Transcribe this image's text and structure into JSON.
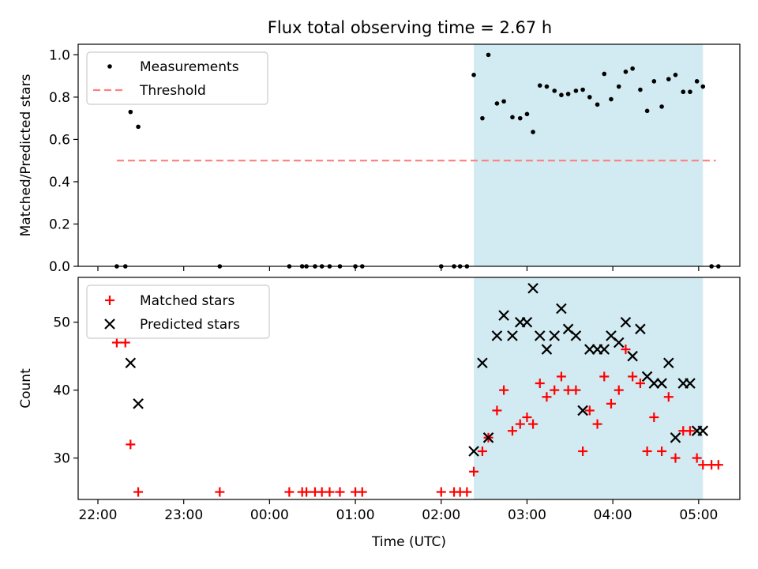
{
  "title": "Flux total observing time = 2.67 h",
  "colors": {
    "band": "#add8e6",
    "measure": "#000000",
    "threshold": "#ff7f7f",
    "matched": "#ff0000",
    "predicted": "#000000"
  },
  "chart_data": [
    {
      "type": "scatter",
      "ylabel": "Matched/Predicted stars",
      "xlim": [
        -0.23,
        7.48
      ],
      "ylim": [
        0,
        1.05
      ],
      "y_ticks": [
        0.0,
        0.2,
        0.4,
        0.6,
        0.8,
        1.0
      ],
      "y_tick_labels": [
        "0.0",
        "0.2",
        "0.4",
        "0.6",
        "0.8",
        "1.0"
      ],
      "band": [
        4.38,
        7.05
      ],
      "legend": {
        "position": "upper-left",
        "entries": [
          {
            "label": "Measurements",
            "kind": "dot"
          },
          {
            "label": "Threshold",
            "kind": "dashed"
          }
        ]
      },
      "threshold": {
        "value": 0.5,
        "x": [
          0.22,
          7.2
        ]
      },
      "series": [
        {
          "name": "Measurements",
          "x": [
            0.22,
            0.32,
            0.38,
            0.47,
            1.42,
            2.23,
            2.38,
            2.43,
            2.53,
            2.61,
            2.7,
            2.82,
            3.0,
            3.08,
            4.0,
            4.15,
            4.22,
            4.3,
            4.38,
            4.48,
            4.55,
            4.65,
            4.73,
            4.83,
            4.92,
            5.0,
            5.07,
            5.15,
            5.23,
            5.32,
            5.4,
            5.48,
            5.57,
            5.65,
            5.73,
            5.82,
            5.9,
            5.98,
            6.07,
            6.15,
            6.23,
            6.32,
            6.4,
            6.48,
            6.57,
            6.65,
            6.73,
            6.82,
            6.9,
            6.98,
            7.05,
            7.15,
            7.23
          ],
          "y": [
            0.0,
            0.0,
            0.73,
            0.66,
            0.0,
            0.0,
            0.0,
            0.0,
            0.0,
            0.0,
            0.0,
            0.0,
            0.0,
            0.0,
            0.0,
            0.0,
            0.0,
            0.0,
            0.905,
            0.7,
            1.0,
            0.77,
            0.78,
            0.705,
            0.7,
            0.72,
            0.635,
            0.855,
            0.85,
            0.83,
            0.81,
            0.815,
            0.83,
            0.835,
            0.8,
            0.765,
            0.91,
            0.79,
            0.85,
            0.92,
            0.935,
            0.835,
            0.735,
            0.875,
            0.755,
            0.885,
            0.905,
            0.825,
            0.825,
            0.875,
            0.85,
            0.0,
            0.0
          ]
        }
      ]
    },
    {
      "type": "scatter",
      "xlabel": "Time (UTC)",
      "ylabel": "Count",
      "xlim": [
        -0.23,
        7.48
      ],
      "ylim": [
        23.9,
        56.6
      ],
      "y_ticks": [
        30,
        40,
        50
      ],
      "y_tick_labels": [
        "30",
        "40",
        "50"
      ],
      "x_ticks": [
        0,
        1,
        2,
        3,
        4,
        5,
        6,
        7
      ],
      "x_tick_labels": [
        "22:00",
        "23:00",
        "00:00",
        "01:00",
        "02:00",
        "03:00",
        "04:00",
        "05:00"
      ],
      "band": [
        4.38,
        7.05
      ],
      "legend": {
        "position": "upper-left",
        "entries": [
          {
            "label": "Matched stars",
            "kind": "plus"
          },
          {
            "label": "Predicted stars",
            "kind": "x"
          }
        ]
      },
      "series": [
        {
          "name": "Matched stars",
          "x": [
            0.22,
            0.32,
            0.38,
            0.47,
            1.42,
            2.23,
            2.38,
            2.43,
            2.53,
            2.61,
            2.7,
            2.82,
            3.0,
            3.08,
            4.0,
            4.15,
            4.22,
            4.3,
            4.38,
            4.48,
            4.55,
            4.65,
            4.73,
            4.83,
            4.92,
            5.0,
            5.07,
            5.15,
            5.23,
            5.32,
            5.4,
            5.48,
            5.57,
            5.65,
            5.73,
            5.82,
            5.9,
            5.98,
            6.07,
            6.15,
            6.23,
            6.32,
            6.4,
            6.48,
            6.57,
            6.65,
            6.73,
            6.82,
            6.9,
            6.98,
            7.05,
            7.15,
            7.23
          ],
          "y": [
            47,
            47,
            32,
            25,
            25,
            25,
            25,
            25,
            25,
            25,
            25,
            25,
            25,
            25,
            25,
            25,
            25,
            25,
            28,
            31,
            33,
            37,
            40,
            34,
            35,
            36,
            35,
            41,
            39,
            40,
            42,
            40,
            40,
            31,
            37,
            35,
            42,
            38,
            40,
            46,
            42,
            41,
            31,
            36,
            31,
            39,
            30,
            34,
            34,
            30,
            29,
            29,
            29
          ]
        },
        {
          "name": "Predicted stars",
          "x": [
            0.38,
            0.47,
            4.38,
            4.48,
            4.55,
            4.65,
            4.73,
            4.83,
            4.92,
            5.0,
            5.07,
            5.15,
            5.23,
            5.32,
            5.4,
            5.48,
            5.57,
            5.65,
            5.73,
            5.82,
            5.9,
            5.98,
            6.07,
            6.15,
            6.23,
            6.32,
            6.4,
            6.48,
            6.57,
            6.65,
            6.73,
            6.82,
            6.9,
            6.98,
            7.05
          ],
          "y": [
            44,
            38,
            31,
            44,
            33,
            48,
            51,
            48,
            50,
            50,
            55,
            48,
            46,
            48,
            52,
            49,
            48,
            37,
            46,
            46,
            46,
            48,
            47,
            50,
            45,
            49,
            42,
            41,
            41,
            44,
            33,
            41,
            41,
            34,
            34
          ]
        }
      ]
    }
  ]
}
